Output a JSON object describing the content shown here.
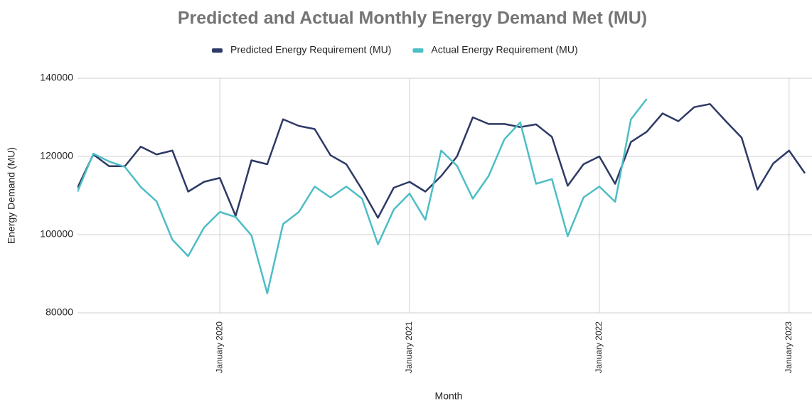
{
  "chart_data": {
    "type": "line",
    "title": "Predicted and Actual Monthly Energy Demand Met (MU)",
    "x_label": "Month",
    "y_label": "Energy  Demand (MU)",
    "x": [
      "2019-04",
      "2019-05",
      "2019-06",
      "2019-07",
      "2019-08",
      "2019-09",
      "2019-10",
      "2019-11",
      "2019-12",
      "2020-01",
      "2020-02",
      "2020-03",
      "2020-04",
      "2020-05",
      "2020-06",
      "2020-07",
      "2020-08",
      "2020-09",
      "2020-10",
      "2020-11",
      "2020-12",
      "2021-01",
      "2021-02",
      "2021-03",
      "2021-04",
      "2021-05",
      "2021-06",
      "2021-07",
      "2021-08",
      "2021-09",
      "2021-10",
      "2021-11",
      "2021-12",
      "2022-01",
      "2022-02",
      "2022-03",
      "2022-04",
      "2022-05",
      "2022-06",
      "2022-07",
      "2022-08",
      "2022-09",
      "2022-10",
      "2022-11",
      "2022-12",
      "2023-01",
      "2023-02"
    ],
    "series": [
      {
        "name": "Predicted Energy Requirement (MU)",
        "color": "#2e3a66",
        "values": [
          112000,
          120500,
          117500,
          117500,
          122500,
          120500,
          121500,
          111000,
          113500,
          114500,
          104800,
          119000,
          118000,
          129500,
          127800,
          127000,
          120300,
          118000,
          111500,
          104300,
          112000,
          113500,
          111000,
          115000,
          120000,
          130000,
          128300,
          128300,
          127500,
          128200,
          125000,
          112500,
          118000,
          120000,
          113000,
          123700,
          126300,
          131000,
          129000,
          132600,
          133400,
          129000,
          124800,
          111500,
          118200,
          121500,
          115700
        ]
      },
      {
        "name": "Actual Energy Requirement (MU)",
        "color": "#4dbdc6",
        "values": [
          111000,
          120700,
          118700,
          117300,
          112200,
          108500,
          98700,
          94500,
          101800,
          105800,
          104500,
          99800,
          85000,
          102700,
          105800,
          112300,
          109500,
          112300,
          109200,
          97500,
          106400,
          110500,
          103800,
          121500,
          117600,
          109200,
          115000,
          124400,
          128700,
          113000,
          114200,
          99600,
          109500,
          112300,
          108400,
          129500,
          134700,
          null,
          null,
          null,
          null,
          null,
          null,
          null,
          null,
          null,
          null
        ]
      }
    ],
    "xlim": [
      "2019-04",
      "2023-02"
    ],
    "xticks": [
      {
        "value": "2020-01",
        "label": "January 2020"
      },
      {
        "value": "2021-01",
        "label": "January 2021"
      },
      {
        "value": "2022-01",
        "label": "January 2022"
      },
      {
        "value": "2023-01",
        "label": "January 2023"
      }
    ],
    "ylim": [
      80000,
      140000
    ],
    "yticks": [
      80000,
      100000,
      120000,
      140000
    ],
    "grid": true,
    "legend": "top"
  }
}
